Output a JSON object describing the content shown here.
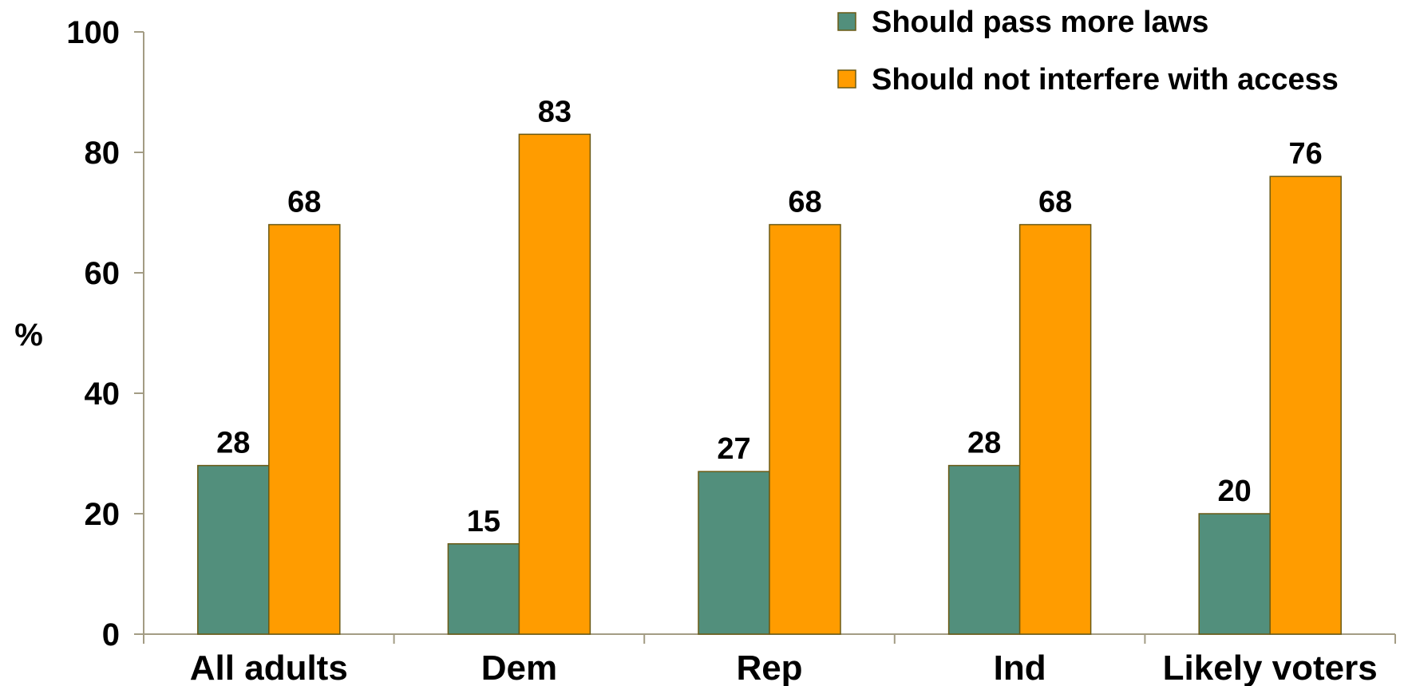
{
  "chart_data": {
    "type": "bar",
    "ylabel": "%",
    "ylim": [
      0,
      100
    ],
    "yticks": [
      0,
      20,
      40,
      60,
      80,
      100
    ],
    "categories": [
      "All adults",
      "Dem",
      "Rep",
      "Ind",
      "Likely voters"
    ],
    "series": [
      {
        "name": "Should pass more laws",
        "color": "#528f7c",
        "values": [
          28,
          15,
          27,
          28,
          20
        ]
      },
      {
        "name": "Should not interfere with access",
        "color": "#ff9c00",
        "values": [
          68,
          83,
          68,
          68,
          76
        ]
      }
    ],
    "legend_position": "top-right",
    "grid": false,
    "axis_color": "#a39c84",
    "bar_border_color": "#6b5a14"
  }
}
